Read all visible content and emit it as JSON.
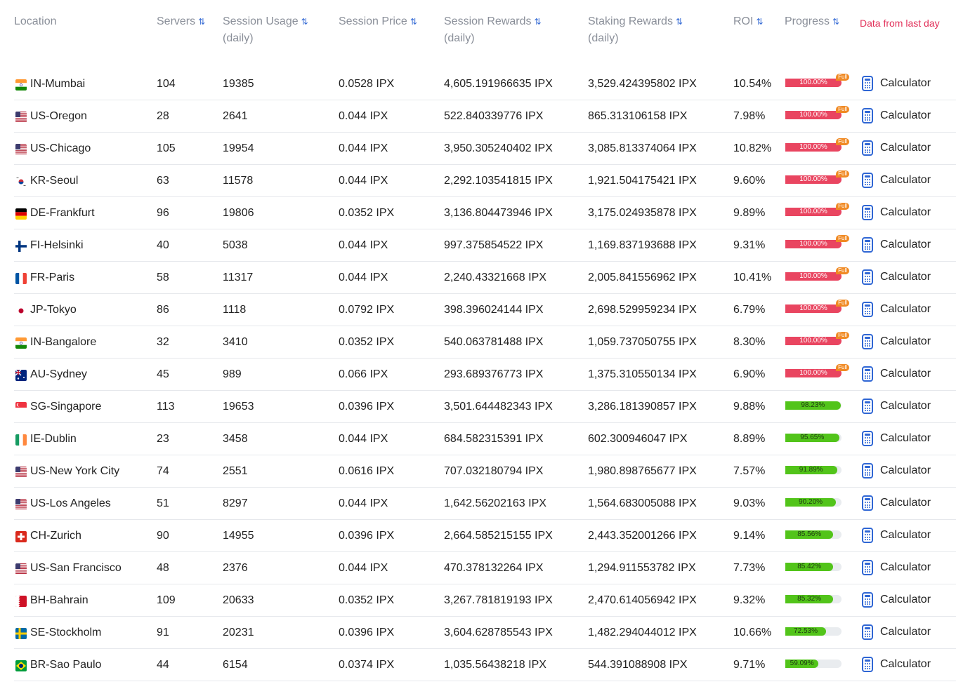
{
  "header": {
    "location": "Location",
    "servers": "Servers",
    "usage": "Session Usage",
    "usage_sub": "(daily)",
    "price": "Session Price",
    "session_rewards": "Session Rewards",
    "session_rewards_sub": "(daily)",
    "staking_rewards": "Staking Rewards",
    "staking_rewards_sub": "(daily)",
    "roi": "ROI",
    "progress": "Progress",
    "note": "Data from last day",
    "sort_glyph": "⇅"
  },
  "full_badge": "Full",
  "calculator_label": "Calculator",
  "colors": {
    "progress_full": "#e94560",
    "progress_partial": "#52c41a",
    "note": "#e2315a",
    "accent": "#2f66d4",
    "full_badge": "#f08a24"
  },
  "rows": [
    {
      "flag": "IN",
      "location": "IN-Mumbai",
      "servers": "104",
      "usage": "19385",
      "price": "0.0528 IPX",
      "session_rewards": "4,605.191966635 IPX",
      "staking_rewards": "3,529.424395802 IPX",
      "roi": "10.54%",
      "progress": 100.0,
      "progress_label": "100.00%"
    },
    {
      "flag": "US",
      "location": "US-Oregon",
      "servers": "28",
      "usage": "2641",
      "price": "0.044 IPX",
      "session_rewards": "522.840339776 IPX",
      "staking_rewards": "865.313106158 IPX",
      "roi": "7.98%",
      "progress": 100.0,
      "progress_label": "100.00%"
    },
    {
      "flag": "US",
      "location": "US-Chicago",
      "servers": "105",
      "usage": "19954",
      "price": "0.044 IPX",
      "session_rewards": "3,950.305240402 IPX",
      "staking_rewards": "3,085.813374064 IPX",
      "roi": "10.82%",
      "progress": 100.0,
      "progress_label": "100.00%"
    },
    {
      "flag": "KR",
      "location": "KR-Seoul",
      "servers": "63",
      "usage": "11578",
      "price": "0.044 IPX",
      "session_rewards": "2,292.103541815 IPX",
      "staking_rewards": "1,921.504175421 IPX",
      "roi": "9.60%",
      "progress": 100.0,
      "progress_label": "100.00%"
    },
    {
      "flag": "DE",
      "location": "DE-Frankfurt",
      "servers": "96",
      "usage": "19806",
      "price": "0.0352 IPX",
      "session_rewards": "3,136.804473946 IPX",
      "staking_rewards": "3,175.024935878 IPX",
      "roi": "9.89%",
      "progress": 100.0,
      "progress_label": "100.00%"
    },
    {
      "flag": "FI",
      "location": "FI-Helsinki",
      "servers": "40",
      "usage": "5038",
      "price": "0.044 IPX",
      "session_rewards": "997.375854522 IPX",
      "staking_rewards": "1,169.837193688 IPX",
      "roi": "9.31%",
      "progress": 100.0,
      "progress_label": "100.00%"
    },
    {
      "flag": "FR",
      "location": "FR-Paris",
      "servers": "58",
      "usage": "11317",
      "price": "0.044 IPX",
      "session_rewards": "2,240.43321668 IPX",
      "staking_rewards": "2,005.841556962 IPX",
      "roi": "10.41%",
      "progress": 100.0,
      "progress_label": "100.00%"
    },
    {
      "flag": "JP",
      "location": "JP-Tokyo",
      "servers": "86",
      "usage": "1118",
      "price": "0.0792 IPX",
      "session_rewards": "398.396024144 IPX",
      "staking_rewards": "2,698.529959234 IPX",
      "roi": "6.79%",
      "progress": 100.0,
      "progress_label": "100.00%"
    },
    {
      "flag": "IN",
      "location": "IN-Bangalore",
      "servers": "32",
      "usage": "3410",
      "price": "0.0352 IPX",
      "session_rewards": "540.063781488 IPX",
      "staking_rewards": "1,059.737050755 IPX",
      "roi": "8.30%",
      "progress": 100.0,
      "progress_label": "100.00%"
    },
    {
      "flag": "AU",
      "location": "AU-Sydney",
      "servers": "45",
      "usage": "989",
      "price": "0.066 IPX",
      "session_rewards": "293.689376773 IPX",
      "staking_rewards": "1,375.310550134 IPX",
      "roi": "6.90%",
      "progress": 100.0,
      "progress_label": "100.00%"
    },
    {
      "flag": "SG",
      "location": "SG-Singapore",
      "servers": "113",
      "usage": "19653",
      "price": "0.0396 IPX",
      "session_rewards": "3,501.644482343 IPX",
      "staking_rewards": "3,286.181390857 IPX",
      "roi": "9.88%",
      "progress": 98.23,
      "progress_label": "98.23%"
    },
    {
      "flag": "IE",
      "location": "IE-Dublin",
      "servers": "23",
      "usage": "3458",
      "price": "0.044 IPX",
      "session_rewards": "684.582315391 IPX",
      "staking_rewards": "602.300946047 IPX",
      "roi": "8.89%",
      "progress": 95.65,
      "progress_label": "95.65%"
    },
    {
      "flag": "US",
      "location": "US-New York City",
      "servers": "74",
      "usage": "2551",
      "price": "0.0616 IPX",
      "session_rewards": "707.032180794 IPX",
      "staking_rewards": "1,980.898765677 IPX",
      "roi": "7.57%",
      "progress": 91.89,
      "progress_label": "91.89%"
    },
    {
      "flag": "US",
      "location": "US-Los Angeles",
      "servers": "51",
      "usage": "8297",
      "price": "0.044 IPX",
      "session_rewards": "1,642.56202163 IPX",
      "staking_rewards": "1,564.683005088 IPX",
      "roi": "9.03%",
      "progress": 90.2,
      "progress_label": "90.20%"
    },
    {
      "flag": "CH",
      "location": "CH-Zurich",
      "servers": "90",
      "usage": "14955",
      "price": "0.0396 IPX",
      "session_rewards": "2,664.585215155 IPX",
      "staking_rewards": "2,443.352001266 IPX",
      "roi": "9.14%",
      "progress": 85.56,
      "progress_label": "85.56%"
    },
    {
      "flag": "US",
      "location": "US-San Francisco",
      "servers": "48",
      "usage": "2376",
      "price": "0.044 IPX",
      "session_rewards": "470.378132264 IPX",
      "staking_rewards": "1,294.911553782 IPX",
      "roi": "7.73%",
      "progress": 85.42,
      "progress_label": "85.42%"
    },
    {
      "flag": "BH",
      "location": "BH-Bahrain",
      "servers": "109",
      "usage": "20633",
      "price": "0.0352 IPX",
      "session_rewards": "3,267.781819193 IPX",
      "staking_rewards": "2,470.614056942 IPX",
      "roi": "9.32%",
      "progress": 85.32,
      "progress_label": "85.32%"
    },
    {
      "flag": "SE",
      "location": "SE-Stockholm",
      "servers": "91",
      "usage": "20231",
      "price": "0.0396 IPX",
      "session_rewards": "3,604.628785543 IPX",
      "staking_rewards": "1,482.294044012 IPX",
      "roi": "10.66%",
      "progress": 72.53,
      "progress_label": "72.53%"
    },
    {
      "flag": "BR",
      "location": "BR-Sao Paulo",
      "servers": "44",
      "usage": "6154",
      "price": "0.0374 IPX",
      "session_rewards": "1,035.56438218 IPX",
      "staking_rewards": "544.391088908 IPX",
      "roi": "9.71%",
      "progress": 59.09,
      "progress_label": "59.09%"
    }
  ]
}
